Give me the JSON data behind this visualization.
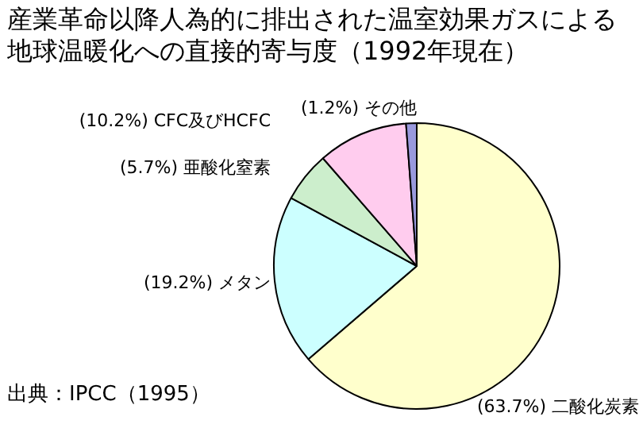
{
  "chart_data": {
    "type": "pie",
    "title": "産業革命以降人為的に排出された温室効果ガスによる地球温暖化への直接的寄与度（1992年現在）",
    "categories": [
      "二酸化炭素",
      "メタン",
      "亜酸化窒素",
      "CFC及びHCFC",
      "その他"
    ],
    "values": [
      63.7,
      19.2,
      5.7,
      10.2,
      1.2
    ],
    "value_labels": [
      "(63.7%)",
      "(19.2%)",
      "(5.7%)",
      "(10.2%)",
      "(1.2%)"
    ],
    "colors": [
      "#ffffcc",
      "#ccffff",
      "#cceecc",
      "#ffccee",
      "#9999dd"
    ],
    "annotations": [
      "出典：IPCC（1995）"
    ]
  }
}
